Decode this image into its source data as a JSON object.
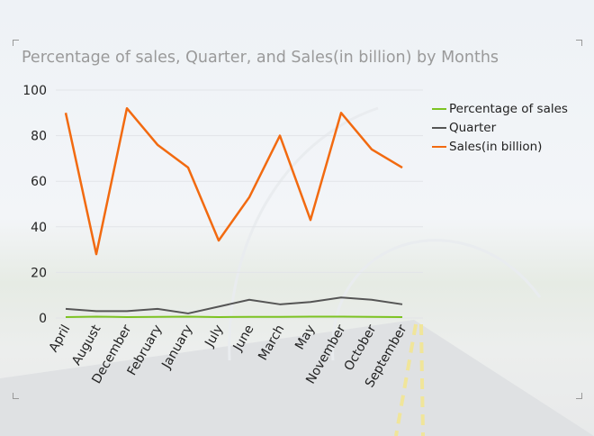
{
  "chart_data": {
    "type": "line",
    "title": "Percentage of sales, Quarter, and Sales(in billion) by Months",
    "categories": [
      "April",
      "August",
      "December",
      "February",
      "January",
      "July",
      "June",
      "March",
      "May",
      "November",
      "October",
      "September"
    ],
    "series": [
      {
        "name": "Percentage of sales",
        "color": "#7dc322",
        "values": [
          0.4,
          0.6,
          0.4,
          0.5,
          0.6,
          0.4,
          0.5,
          0.5,
          0.6,
          0.6,
          0.5,
          0.4
        ]
      },
      {
        "name": "Quarter",
        "color": "#555555",
        "values": [
          4,
          3,
          3,
          4,
          2,
          5,
          8,
          6,
          7,
          9,
          8,
          6
        ]
      },
      {
        "name": "Sales(in billion)",
        "color": "#f26a10",
        "values": [
          90,
          28,
          92,
          76,
          66,
          34,
          53,
          80,
          43,
          90,
          74,
          66
        ]
      }
    ],
    "ylim": [
      0,
      100
    ],
    "yticks": [
      "0",
      "20",
      "40",
      "60",
      "80",
      "100"
    ],
    "grid": true,
    "legend": "right"
  }
}
